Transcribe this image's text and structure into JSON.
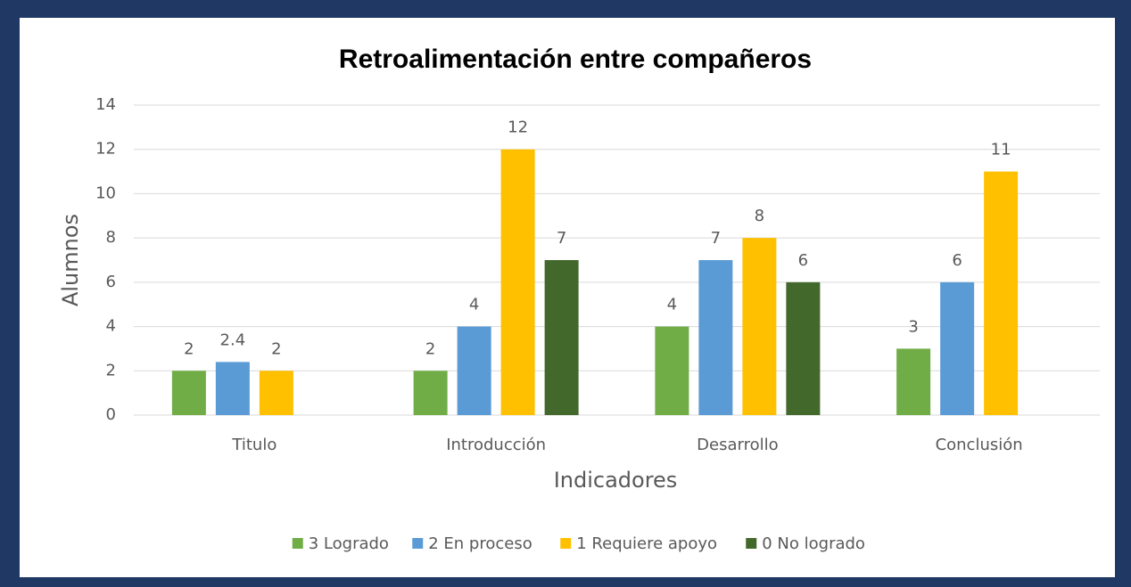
{
  "chart_data": {
    "type": "bar",
    "title": "Retroalimentación entre compañeros",
    "x_label": "Indicadores",
    "y_label": "Alumnos",
    "categories": [
      "Titulo",
      "Introducción",
      "Desarrollo",
      "Conclusión"
    ],
    "series": [
      {
        "name": "3 Logrado",
        "color": "#70ad47",
        "values": [
          2,
          2,
          4,
          3
        ]
      },
      {
        "name": "2 En proceso",
        "color": "#5b9bd5",
        "values": [
          2.4,
          4,
          7,
          6
        ]
      },
      {
        "name": "1 Requiere apoyo",
        "color": "#ffc000",
        "values": [
          2,
          12,
          8,
          11
        ]
      },
      {
        "name": "0 No logrado",
        "color": "#43682b",
        "values": [
          null,
          7,
          6,
          null
        ]
      }
    ],
    "ylim": [
      0,
      14
    ],
    "yticks": [
      0,
      2,
      4,
      6,
      8,
      10,
      12,
      14
    ],
    "grid": true,
    "legend": "bottom"
  }
}
